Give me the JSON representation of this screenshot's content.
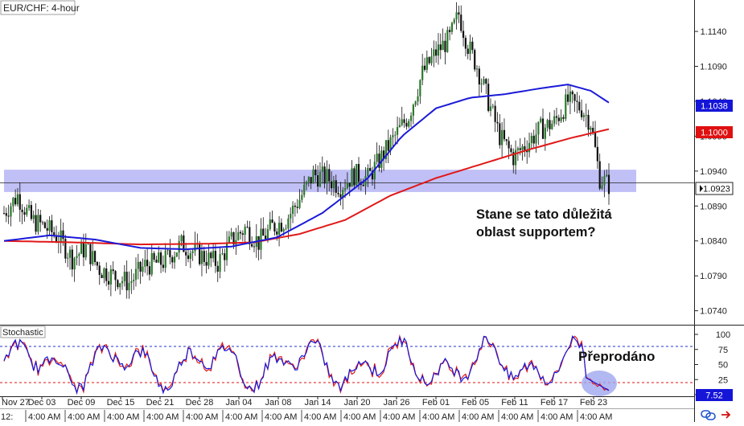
{
  "header": {
    "symbol_label": "EUR/CHF: 4-hour"
  },
  "stochastic": {
    "label": "Stochastic"
  },
  "annotations": {
    "support_question_line1": "Stane se tato důležitá",
    "support_question_line2": "oblast supportem?",
    "oversold": "Přeprodáno"
  },
  "x_axis": {
    "date_labels": [
      "Nov 27",
      "Dec 03",
      "Dec 09",
      "Dec 15",
      "Dec 21",
      "Dec 28",
      "Jan 04",
      "Jan 08",
      "Jan 14",
      "Jan 20",
      "Jan 26",
      "Feb 01",
      "Feb 05",
      "Feb 11",
      "Feb 17",
      "Feb 23"
    ],
    "time_row_first": "12:",
    "time_label": "4:00 AM",
    "time_label_count": 15
  },
  "price_axis": {
    "ticks": [
      "1.1140",
      "1.1090",
      "1.1040",
      "1.0990",
      "1.0940",
      "1.0890",
      "1.0840",
      "1.0790",
      "1.0740"
    ],
    "badges": [
      {
        "label": "1.1038",
        "color": "#1515d8"
      },
      {
        "label": "1.1000",
        "color": "#e01010"
      },
      {
        "label": "1.0923",
        "color": "#ffffff"
      }
    ]
  },
  "stoch_axis": {
    "ticks": [
      "100",
      "75",
      "50",
      "25",
      "0"
    ],
    "badge": {
      "label": "7.52",
      "color": "#1515d8"
    }
  },
  "colors": {
    "ma_blue": "#1a1ad8",
    "ma_red": "#e01818",
    "bull_candle": "#2a7a2a",
    "bear_candle": "#111111",
    "support_zone": "#9a9af0",
    "stoch_k": "#1a1ad8",
    "stoch_d": "#e01818",
    "oversold_circle": "#9fa6ee"
  },
  "chart_data": {
    "type": "candlestick",
    "title": "EUR/CHF: 4-hour",
    "y_range": [
      1.072,
      1.1185
    ],
    "support_zone": [
      1.091,
      1.0942
    ],
    "current_price": 1.0923,
    "ma_fast_last": 1.1038,
    "ma_slow_last": 1.1,
    "price_path": [
      [
        0,
        1.088
      ],
      [
        6,
        1.0905
      ],
      [
        12,
        1.087
      ],
      [
        18,
        1.086
      ],
      [
        24,
        1.0845
      ],
      [
        30,
        1.0815
      ],
      [
        36,
        1.083
      ],
      [
        42,
        1.08
      ],
      [
        48,
        1.079
      ],
      [
        55,
        1.078
      ],
      [
        62,
        1.0805
      ],
      [
        70,
        1.081
      ],
      [
        78,
        1.0835
      ],
      [
        86,
        1.082
      ],
      [
        94,
        1.0808
      ],
      [
        100,
        1.084
      ],
      [
        106,
        1.0858
      ],
      [
        112,
        1.0838
      ],
      [
        118,
        1.086
      ],
      [
        124,
        1.087
      ],
      [
        130,
        1.09
      ],
      [
        136,
        1.0935
      ],
      [
        142,
        1.093
      ],
      [
        148,
        1.0918
      ],
      [
        154,
        1.0935
      ],
      [
        160,
        1.093
      ],
      [
        166,
        1.096
      ],
      [
        172,
        1.099
      ],
      [
        178,
        1.102
      ],
      [
        184,
        1.108
      ],
      [
        190,
        1.111
      ],
      [
        196,
        1.113
      ],
      [
        200,
        1.1165
      ],
      [
        204,
        1.112
      ],
      [
        208,
        1.109
      ],
      [
        212,
        1.105
      ],
      [
        218,
        1.099
      ],
      [
        224,
        1.096
      ],
      [
        230,
        1.098
      ],
      [
        236,
        1.1
      ],
      [
        242,
        1.101
      ],
      [
        248,
        1.104
      ],
      [
        254,
        1.103
      ],
      [
        258,
        1.101
      ],
      [
        262,
        1.093
      ],
      [
        266,
        1.092
      ]
    ],
    "ma_fast_path": [
      [
        0,
        1.084
      ],
      [
        20,
        1.0848
      ],
      [
        40,
        1.0842
      ],
      [
        60,
        1.083
      ],
      [
        80,
        1.0828
      ],
      [
        100,
        1.0832
      ],
      [
        120,
        1.0845
      ],
      [
        140,
        1.088
      ],
      [
        160,
        1.093
      ],
      [
        175,
        1.099
      ],
      [
        190,
        1.103
      ],
      [
        205,
        1.1045
      ],
      [
        220,
        1.105
      ],
      [
        235,
        1.1058
      ],
      [
        248,
        1.1064
      ],
      [
        258,
        1.1055
      ],
      [
        266,
        1.1038
      ]
    ],
    "ma_slow_path": [
      [
        0,
        1.084
      ],
      [
        30,
        1.0838
      ],
      [
        60,
        1.0835
      ],
      [
        90,
        1.0836
      ],
      [
        110,
        1.0838
      ],
      [
        130,
        1.085
      ],
      [
        150,
        1.087
      ],
      [
        170,
        1.0905
      ],
      [
        190,
        1.093
      ],
      [
        210,
        1.095
      ],
      [
        230,
        1.097
      ],
      [
        250,
        1.0988
      ],
      [
        266,
        1.1
      ]
    ],
    "stochastic": {
      "range": [
        0,
        100
      ],
      "levels": [
        80,
        20
      ],
      "last_value": 7.52
    }
  }
}
